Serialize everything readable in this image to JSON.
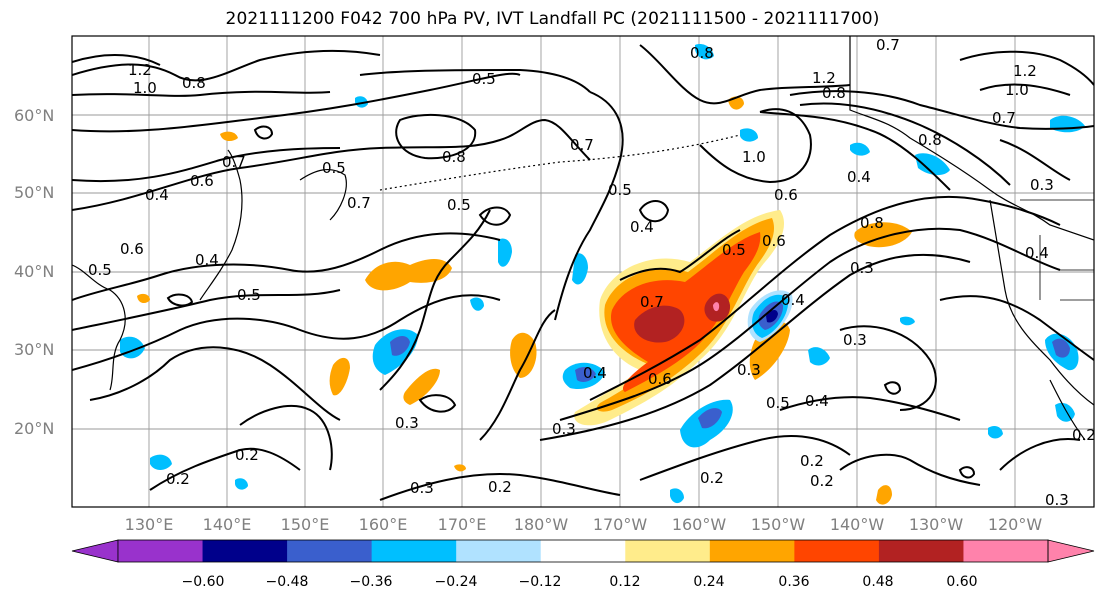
{
  "title": "2021111200 F042 700 hPa PV, IVT Landfall PC (2021111500 - 2021111700)",
  "map": {
    "lat_labels": [
      "60°N",
      "50°N",
      "40°N",
      "30°N",
      "20°N"
    ],
    "lon_labels": [
      "130°E",
      "140°E",
      "150°E",
      "160°E",
      "170°E",
      "180°W",
      "170°W",
      "160°W",
      "150°W",
      "140°W",
      "130°W",
      "120°W"
    ],
    "contour_labels": [
      "1.2",
      "1.0",
      "0.8",
      "0.5",
      "0.7",
      "0.6",
      "0.5",
      "0.7",
      "0.4",
      "0.6",
      "0.5",
      "0.4",
      "0.5",
      "0.8",
      "0.5",
      "0.7",
      "0.5",
      "0.4",
      "0.5",
      "0.6",
      "0.8",
      "0.4",
      "0.6",
      "1.0",
      "1.2",
      "0.8",
      "0.4",
      "0.8",
      "0.3",
      "0.7",
      "0.4",
      "0.6",
      "0.3",
      "0.5",
      "0.4",
      "0.3",
      "0.2",
      "0.3",
      "0.2",
      "0.2",
      "0.2",
      "0.2",
      "0.3",
      "1.0",
      "1.2",
      "0.7",
      "0.3",
      "0.4",
      "0.2",
      "0.3",
      "0.7",
      "0.8",
      "0.2",
      "0.3"
    ]
  },
  "colorbar": {
    "colors": [
      "#9932cc",
      "#00008b",
      "#3a5fcd",
      "#00bfff",
      "#b0e2ff",
      "#ffffff",
      "#ffec8b",
      "#ffa500",
      "#ff4500",
      "#b22222",
      "#ff82ab"
    ],
    "tick_labels": [
      "−0.60",
      "−0.48",
      "−0.36",
      "−0.24",
      "−0.12",
      "0.12",
      "0.24",
      "0.36",
      "0.48",
      "0.60"
    ]
  }
}
